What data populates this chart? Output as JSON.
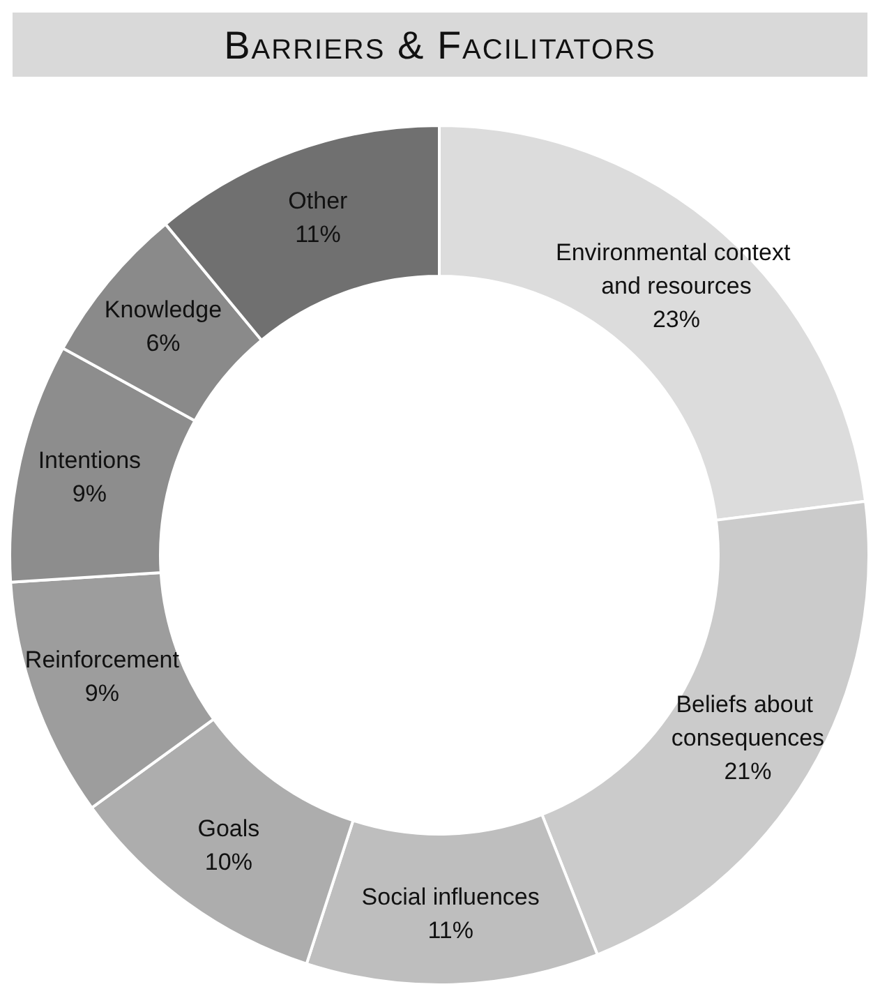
{
  "chart_data": {
    "type": "donut",
    "title": "Barriers & Facilitators",
    "categories": [
      "Environmental context and resources",
      "Beliefs about consequences",
      "Social influences",
      "Goals",
      "Reinforcement",
      "Intentions",
      "Knowledge",
      "Other"
    ],
    "values": [
      23,
      21,
      11,
      10,
      9,
      9,
      6,
      11
    ],
    "value_labels": [
      "23%",
      "21%",
      "11%",
      "10%",
      "9%",
      "9%",
      "6%",
      "11%"
    ],
    "colors": [
      "#dcdcdc",
      "#cbcbcb",
      "#bebebe",
      "#adadad",
      "#9d9d9d",
      "#8d8d8d",
      "#8a8a8a",
      "#707070"
    ],
    "legend": false
  }
}
